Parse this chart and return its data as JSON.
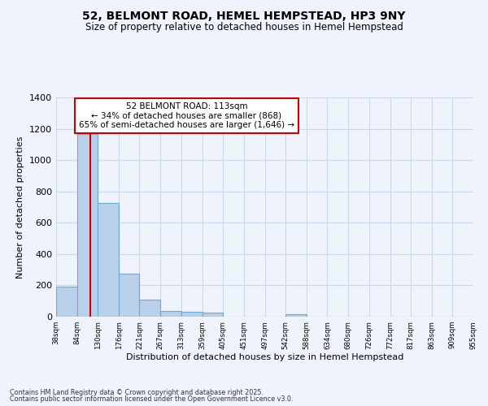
{
  "title_line1": "52, BELMONT ROAD, HEMEL HEMPSTEAD, HP3 9NY",
  "title_line2": "Size of property relative to detached houses in Hemel Hempstead",
  "xlabel": "Distribution of detached houses by size in Hemel Hempstead",
  "ylabel": "Number of detached properties",
  "bar_left_edges": [
    38,
    84,
    130,
    176,
    221,
    267,
    313,
    359,
    405,
    451,
    497,
    542,
    588,
    634,
    680,
    726,
    772,
    817,
    863,
    909
  ],
  "bar_widths": [
    46,
    46,
    46,
    45,
    46,
    46,
    46,
    46,
    46,
    46,
    45,
    46,
    46,
    46,
    46,
    46,
    45,
    46,
    46,
    46
  ],
  "bar_heights": [
    193,
    1165,
    725,
    275,
    108,
    37,
    29,
    26,
    0,
    0,
    0,
    13,
    0,
    0,
    0,
    0,
    0,
    0,
    0,
    0
  ],
  "bar_color": "#b8d0ea",
  "bar_edgecolor": "#6aaad4",
  "grid_color": "#c8d8ee",
  "background_color": "#eef3fc",
  "red_line_x": 113,
  "red_line_color": "#cc0000",
  "annotation_text_line1": "52 BELMONT ROAD: 113sqm",
  "annotation_text_line2": "← 34% of detached houses are smaller (868)",
  "annotation_text_line3": "65% of semi-detached houses are larger (1,646) →",
  "annotation_box_color": "#ffffff",
  "annotation_box_edgecolor": "#cc0000",
  "xlim": [
    38,
    955
  ],
  "ylim": [
    0,
    1400
  ],
  "xtick_labels": [
    "38sqm",
    "84sqm",
    "130sqm",
    "176sqm",
    "221sqm",
    "267sqm",
    "313sqm",
    "359sqm",
    "405sqm",
    "451sqm",
    "497sqm",
    "542sqm",
    "588sqm",
    "634sqm",
    "680sqm",
    "726sqm",
    "772sqm",
    "817sqm",
    "863sqm",
    "909sqm",
    "955sqm"
  ],
  "xtick_positions": [
    38,
    84,
    130,
    176,
    221,
    267,
    313,
    359,
    405,
    451,
    497,
    542,
    588,
    634,
    680,
    726,
    772,
    817,
    863,
    909,
    955
  ],
  "ytick_positions": [
    0,
    200,
    400,
    600,
    800,
    1000,
    1200,
    1400
  ],
  "footer_line1": "Contains HM Land Registry data © Crown copyright and database right 2025.",
  "footer_line2": "Contains public sector information licensed under the Open Government Licence v3.0."
}
